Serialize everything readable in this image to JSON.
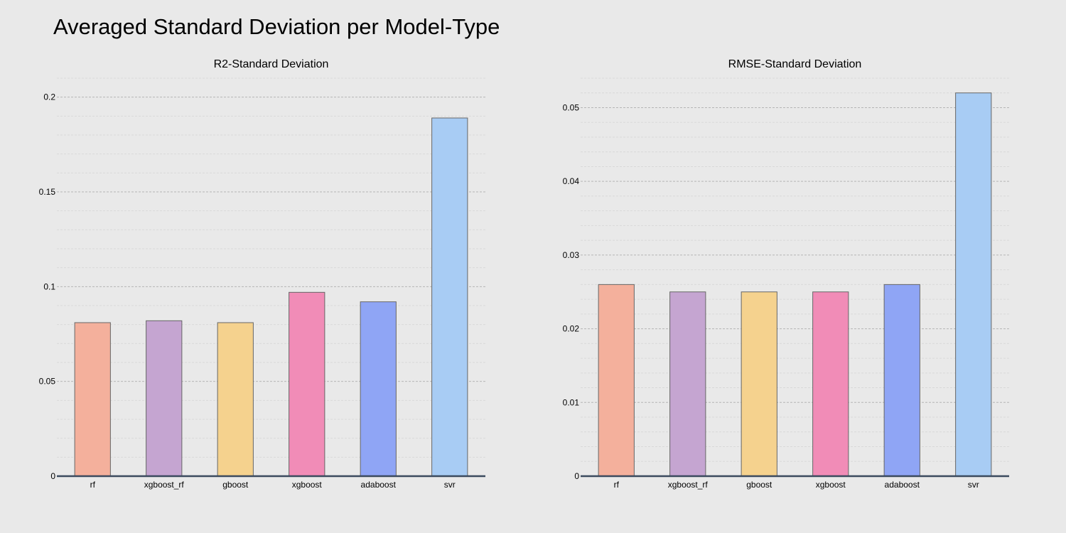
{
  "title": "Averaged Standard Deviation per Model-Type",
  "colors": {
    "background": "#e9e9e9",
    "bars": [
      "#f4b09c",
      "#c5a5d1",
      "#f5d28e",
      "#f18cb7",
      "#8fa5f5",
      "#a8ccf4"
    ]
  },
  "chart_data": [
    {
      "type": "bar",
      "title": "R2-Standard Deviation",
      "categories": [
        "rf",
        "xgboost_rf",
        "gboost",
        "xgboost",
        "adaboost",
        "svr"
      ],
      "values": [
        0.081,
        0.082,
        0.081,
        0.097,
        0.092,
        0.189
      ],
      "ylim": [
        0,
        0.21
      ],
      "yticks": [
        0,
        0.05,
        0.1,
        0.15,
        0.2
      ],
      "ytick_labels": [
        "0",
        "0.05",
        "0.1",
        "0.15",
        "0.2"
      ],
      "minor_step": 0.01,
      "grid": true,
      "xlabel": "",
      "ylabel": ""
    },
    {
      "type": "bar",
      "title": "RMSE-Standard Deviation",
      "categories": [
        "rf",
        "xgboost_rf",
        "gboost",
        "xgboost",
        "adaboost",
        "svr"
      ],
      "values": [
        0.026,
        0.025,
        0.025,
        0.025,
        0.026,
        0.052
      ],
      "ylim": [
        0,
        0.054
      ],
      "yticks": [
        0,
        0.01,
        0.02,
        0.03,
        0.04,
        0.05
      ],
      "ytick_labels": [
        "0",
        "0.01",
        "0.02",
        "0.03",
        "0.04",
        "0.05"
      ],
      "minor_step": 0.002,
      "grid": true,
      "xlabel": "",
      "ylabel": ""
    }
  ]
}
